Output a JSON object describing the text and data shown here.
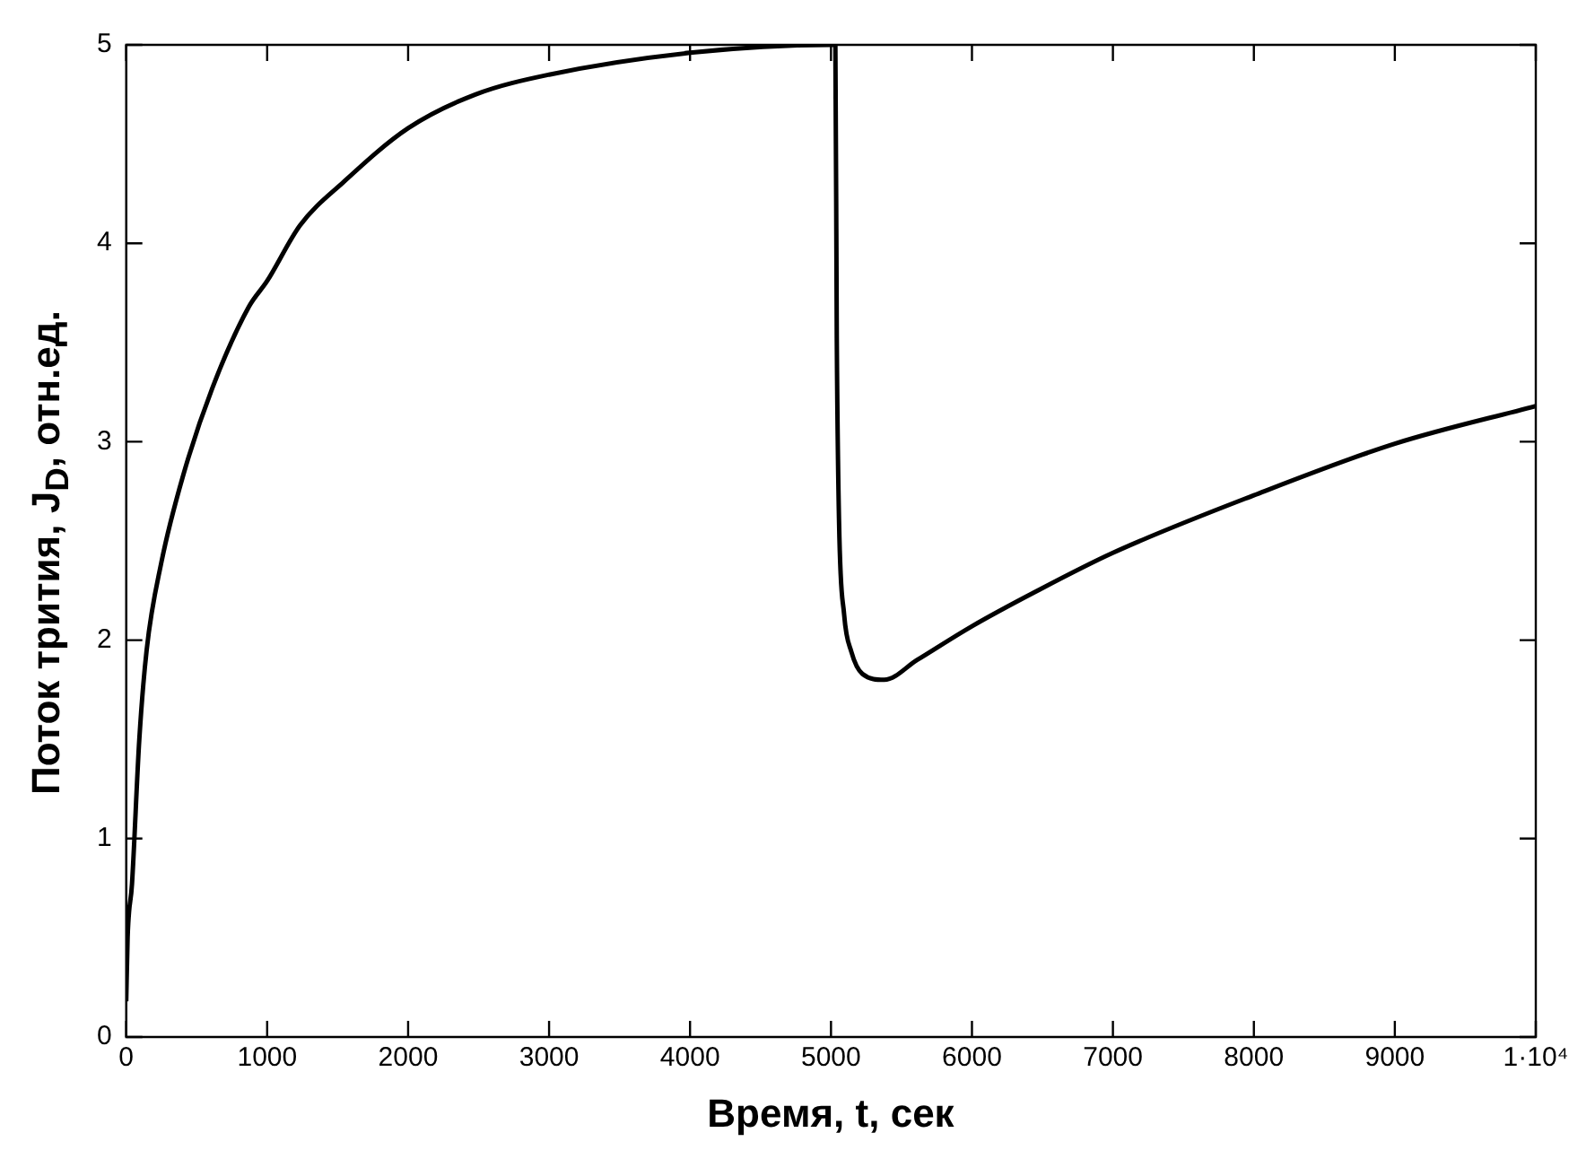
{
  "chart_data": {
    "type": "line",
    "xlabel": "Время, t, сек",
    "ylabel": "Поток трития, J$_{D}$, отн.ед.",
    "xlim": [
      0,
      10000
    ],
    "ylim": [
      0,
      5
    ],
    "xticks": [
      0,
      1000,
      2000,
      3000,
      4000,
      5000,
      6000,
      7000,
      8000,
      9000,
      {
        "value": 10000,
        "label": "1·10⁴"
      }
    ],
    "yticks": [
      0,
      1,
      2,
      3,
      4,
      5
    ],
    "grid": false,
    "legend": false,
    "marker": "none",
    "line_style": "solid",
    "series": [
      {
        "color": "#000000",
        "x": [
          0,
          10,
          41,
          93,
          145,
          249,
          404,
          611,
          870,
          1000,
          1233,
          1544,
          2000,
          2477,
          3000,
          4000,
          5000,
          5031,
          5041,
          5057,
          5093,
          5145,
          5223,
          5378,
          5611,
          6000,
          6440,
          7000,
          8000,
          9000,
          10000
        ],
        "values": [
          0.18,
          0.5,
          0.77,
          1.5,
          1.95,
          2.39,
          2.83,
          3.27,
          3.68,
          3.81,
          4.09,
          4.31,
          4.58,
          4.75,
          4.85,
          4.96,
          5.0,
          5.0,
          3.52,
          2.6,
          2.13,
          1.94,
          1.83,
          1.8,
          1.9,
          2.07,
          2.24,
          2.44,
          2.73,
          2.99,
          3.18
        ]
      }
    ]
  }
}
